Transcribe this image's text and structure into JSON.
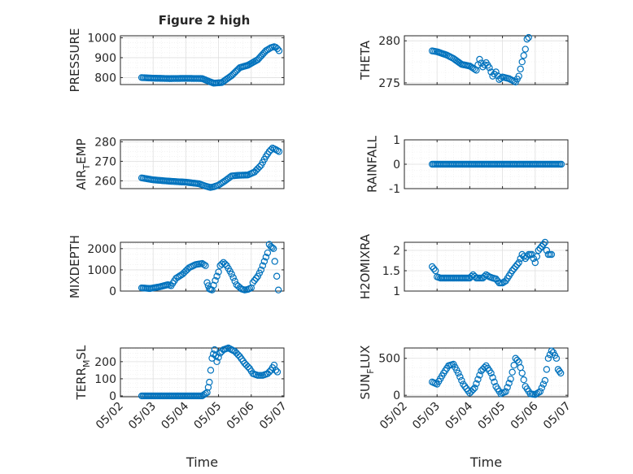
{
  "figure_title": "Figure 2 high",
  "xlabel": "Time",
  "x_ticks": [
    "05/02",
    "05/03",
    "05/04",
    "05/05",
    "05/06",
    "05/07"
  ],
  "colors": {
    "marker": "#0072BD",
    "axis": "#262626",
    "grid": "#dfdfdf",
    "minor_grid": "#ececec",
    "background": "#ffffff"
  },
  "chart_data": [
    {
      "type": "scatter",
      "ylabel": "PRESSURE",
      "ylim": [
        765,
        1010
      ],
      "yticks": [
        800,
        900,
        1000
      ],
      "grid": true,
      "x_domain": [
        "05/02",
        "05/07"
      ],
      "series": [
        {
          "x_days": [
            0.65,
            1.0,
            1.5,
            2.0,
            2.5,
            2.72,
            2.85,
            3.1,
            3.4,
            3.65,
            3.9,
            4.2,
            4.45,
            4.6,
            4.7,
            4.75,
            4.8,
            4.85
          ],
          "values": [
            800,
            797,
            795,
            796,
            795,
            780,
            772,
            775,
            810,
            850,
            862,
            890,
            935,
            950,
            955,
            952,
            945,
            935
          ]
        }
      ]
    },
    {
      "type": "scatter",
      "ylabel": "THETA",
      "ylim": [
        274.8,
        280.6
      ],
      "yticks": [
        275,
        280
      ],
      "grid": true,
      "x_domain": [
        "05/02",
        "05/07"
      ],
      "series": [
        {
          "x_days": [
            0.85,
            1.0,
            1.3,
            1.5,
            1.75,
            2.0,
            2.2,
            2.3,
            2.4,
            2.5,
            2.6,
            2.7,
            2.8,
            2.9,
            3.0,
            3.2,
            3.4,
            3.5,
            3.6,
            3.7,
            3.75,
            3.8
          ],
          "values": [
            278.8,
            278.7,
            278.3,
            277.9,
            277.2,
            277.0,
            276.5,
            277.8,
            276.9,
            277.4,
            276.8,
            275.8,
            276.3,
            275.4,
            275.7,
            275.5,
            275.1,
            275.8,
            277.5,
            279.0,
            280.2,
            280.4
          ]
        }
      ]
    },
    {
      "type": "scatter",
      "ylabel": "AIR_TEMP",
      "ylabel_main": "AIR",
      "ylabel_sub": "T",
      "ylabel_tail": "EMP",
      "ylim": [
        256,
        281
      ],
      "yticks": [
        260,
        270,
        280
      ],
      "grid": true,
      "x_domain": [
        "05/02",
        "05/07"
      ],
      "series": [
        {
          "x_days": [
            0.65,
            1.0,
            1.5,
            2.0,
            2.4,
            2.6,
            2.75,
            2.85,
            3.0,
            3.2,
            3.4,
            3.6,
            3.9,
            4.1,
            4.3,
            4.45,
            4.55,
            4.65,
            4.75,
            4.85
          ],
          "values": [
            261.5,
            260.5,
            259.8,
            259.3,
            258.5,
            257.3,
            256.6,
            256.9,
            257.8,
            260.0,
            262.5,
            262.8,
            263.0,
            264.5,
            268.0,
            272.5,
            275.0,
            276.8,
            276.0,
            275.0
          ]
        }
      ]
    },
    {
      "type": "scatter",
      "ylabel": "RAINFALL",
      "ylim": [
        -1,
        1
      ],
      "yticks": [
        -1,
        0,
        1
      ],
      "grid": true,
      "x_domain": [
        "05/02",
        "05/07"
      ],
      "series": [
        {
          "x_days": [
            0.85,
            1.2,
            1.6,
            2.0,
            2.4,
            2.8,
            3.2,
            3.6,
            4.0,
            4.4,
            4.8
          ],
          "values": [
            0,
            0,
            0,
            0,
            0,
            0,
            0,
            0,
            0,
            0,
            0
          ]
        }
      ]
    },
    {
      "type": "scatter",
      "ylabel": "MIXDEPTH",
      "ylim": [
        0,
        2300
      ],
      "yticks": [
        0,
        1000,
        2000
      ],
      "grid": true,
      "x_domain": [
        "05/02",
        "05/07"
      ],
      "series": [
        {
          "x_days": [
            0.65,
            0.9,
            1.2,
            1.45,
            1.55,
            1.7,
            1.9,
            2.1,
            2.3,
            2.5,
            2.6,
            2.65,
            2.72,
            2.8,
            2.9,
            3.0,
            3.05,
            3.15,
            3.25,
            3.4,
            3.55,
            3.7,
            3.8,
            3.9,
            4.0,
            4.05,
            4.2,
            4.3,
            4.4,
            4.5,
            4.55,
            4.6,
            4.68,
            4.72,
            4.78,
            4.83
          ],
          "values": [
            150,
            120,
            200,
            300,
            250,
            600,
            800,
            1100,
            1250,
            1300,
            1200,
            400,
            100,
            50,
            500,
            900,
            1200,
            1350,
            1200,
            800,
            300,
            100,
            50,
            80,
            150,
            400,
            700,
            1000,
            1400,
            1800,
            2200,
            2100,
            2000,
            1400,
            700,
            50
          ]
        }
      ]
    },
    {
      "type": "scatter",
      "ylabel": "H2OMIXRA",
      "ylim": [
        1,
        2.2
      ],
      "yticks": [
        1,
        1.5,
        2
      ],
      "grid": true,
      "x_domain": [
        "05/02",
        "05/07"
      ],
      "series": [
        {
          "x_days": [
            0.85,
            0.95,
            1.0,
            1.1,
            1.4,
            1.7,
            2.0,
            2.1,
            2.2,
            2.4,
            2.5,
            2.6,
            2.7,
            2.8,
            2.9,
            3.0,
            3.1,
            3.3,
            3.5,
            3.6,
            3.7,
            3.8,
            3.9,
            4.0,
            4.1,
            4.2,
            4.3,
            4.35,
            4.4,
            4.5
          ],
          "values": [
            1.6,
            1.5,
            1.35,
            1.32,
            1.32,
            1.32,
            1.32,
            1.4,
            1.32,
            1.32,
            1.4,
            1.35,
            1.32,
            1.3,
            1.2,
            1.2,
            1.25,
            1.5,
            1.7,
            1.9,
            1.8,
            1.9,
            1.9,
            1.7,
            2.0,
            2.1,
            2.2,
            2.0,
            1.9,
            1.9
          ]
        }
      ]
    },
    {
      "type": "scatter",
      "ylabel": "TERR_MSL",
      "ylabel_main": "TERR",
      "ylabel_sub": "M",
      "ylabel_tail": "SL",
      "ylim": [
        -5,
        280
      ],
      "yticks": [
        0,
        100,
        200
      ],
      "grid": true,
      "x_domain": [
        "05/02",
        "05/07"
      ],
      "series": [
        {
          "x_days": [
            0.65,
            1.0,
            1.5,
            2.0,
            2.5,
            2.65,
            2.72,
            2.8,
            2.88,
            2.95,
            3.05,
            3.15,
            3.3,
            3.5,
            3.65,
            3.8,
            3.95,
            4.05,
            4.2,
            4.35,
            4.5,
            4.6,
            4.7,
            4.75,
            4.8
          ],
          "values": [
            0,
            0,
            0,
            0,
            0,
            20,
            80,
            220,
            270,
            200,
            250,
            270,
            280,
            260,
            230,
            190,
            160,
            130,
            120,
            120,
            130,
            150,
            180,
            150,
            140
          ]
        }
      ]
    },
    {
      "type": "scatter",
      "ylabel": "SUN_FLUX",
      "ylabel_main": "SUN",
      "ylabel_sub": "F",
      "ylabel_tail": "LUX",
      "ylim": [
        -20,
        640
      ],
      "yticks": [
        0,
        500
      ],
      "grid": true,
      "x_domain": [
        "05/02",
        "05/07"
      ],
      "series": [
        {
          "x_days": [
            0.85,
            1.0,
            1.2,
            1.35,
            1.5,
            1.65,
            1.8,
            2.0,
            2.15,
            2.35,
            2.5,
            2.65,
            2.8,
            2.95,
            3.1,
            3.25,
            3.4,
            3.5,
            3.6,
            3.7,
            3.85,
            4.0,
            4.15,
            4.3,
            4.4,
            4.5,
            4.55,
            4.65,
            4.7,
            4.78
          ],
          "values": [
            180,
            150,
            300,
            400,
            420,
            300,
            150,
            30,
            100,
            330,
            400,
            300,
            120,
            20,
            50,
            220,
            500,
            450,
            300,
            120,
            20,
            10,
            50,
            200,
            500,
            600,
            580,
            500,
            350,
            300
          ]
        }
      ]
    }
  ]
}
